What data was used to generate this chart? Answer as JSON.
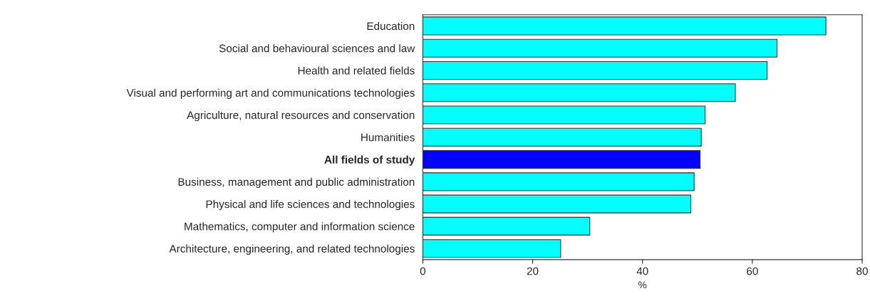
{
  "chart_data": {
    "type": "bar",
    "orientation": "horizontal",
    "xlabel": "%",
    "categories": [
      "Education",
      "Social and behavioural sciences and law",
      "Health and related fields",
      "Visual and performing art and communications technologies",
      "Agriculture, natural resources and conservation",
      "Humanities",
      "All fields of study",
      "Business, management and public administration",
      "Physical and life sciences and technologies",
      "Mathematics, computer and information science",
      "Architecture, engineering, and related technologies"
    ],
    "values": [
      73.4,
      64.5,
      62.7,
      56.9,
      51.4,
      50.7,
      50.5,
      49.4,
      48.8,
      30.4,
      25.1
    ],
    "colors": [
      "#00ffff",
      "#00ffff",
      "#00ffff",
      "#00ffff",
      "#00ffff",
      "#00ffff",
      "#0000ff",
      "#00ffff",
      "#00ffff",
      "#00ffff",
      "#00ffff"
    ],
    "xlim": [
      0,
      80
    ],
    "xticks": [
      0,
      20,
      40,
      60,
      80
    ],
    "grid": false
  }
}
